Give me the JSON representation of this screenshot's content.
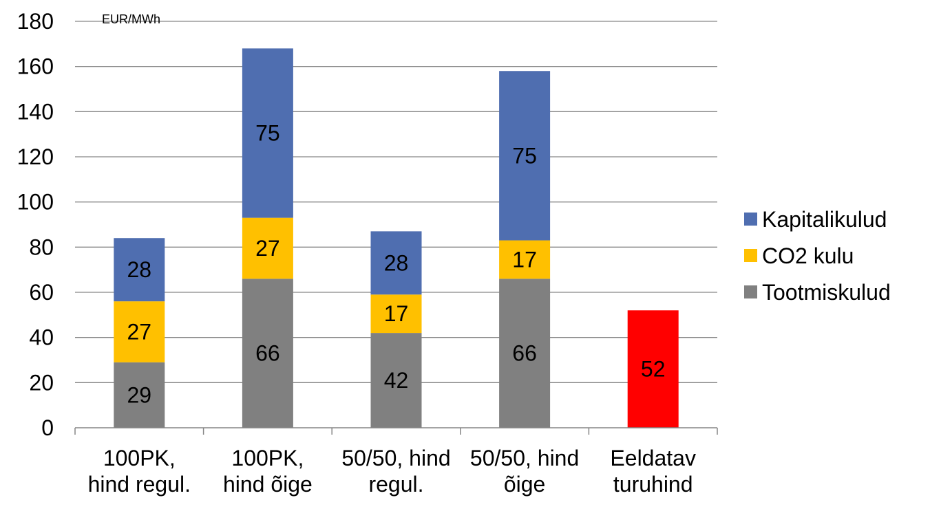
{
  "chart_data": {
    "type": "bar",
    "stacked": true,
    "unit_label": "EUR/MWh",
    "categories": [
      [
        "100PK,",
        "hind regul."
      ],
      [
        "100PK,",
        "hind õige"
      ],
      [
        "50/50, hind",
        "regul."
      ],
      [
        "50/50, hind",
        "õige"
      ],
      [
        "Eeldatav",
        "turuhind"
      ]
    ],
    "series": [
      {
        "name": "Tootmiskulud",
        "color": "#808080",
        "values": [
          29,
          66,
          42,
          66,
          null
        ]
      },
      {
        "name": "CO2 kulu",
        "color": "#FFC000",
        "values": [
          27,
          27,
          17,
          17,
          null
        ]
      },
      {
        "name": "Kapitalikulud",
        "color": "#4F6EB0",
        "values": [
          28,
          75,
          28,
          75,
          null
        ]
      },
      {
        "name": "",
        "color": "#FF0000",
        "values": [
          null,
          null,
          null,
          null,
          52
        ]
      }
    ],
    "ylim": [
      0,
      180
    ],
    "yticks": [
      0,
      20,
      40,
      60,
      80,
      100,
      120,
      140,
      160,
      180
    ],
    "grid": true,
    "legend_position": "right",
    "legend_order": [
      "Kapitalikulud",
      "CO2 kulu",
      "Tootmiskulud"
    ]
  }
}
